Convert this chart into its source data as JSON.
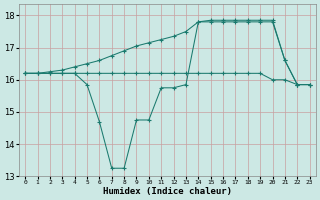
{
  "xlabel": "Humidex (Indice chaleur)",
  "bg_color": "#cce8e4",
  "line_color": "#1a7a6e",
  "grid_color": "#d9b8b8",
  "xlim": [
    -0.5,
    23.5
  ],
  "ylim": [
    13.0,
    18.35
  ],
  "yticks": [
    13,
    14,
    15,
    16,
    17,
    18
  ],
  "xticks": [
    0,
    1,
    2,
    3,
    4,
    5,
    6,
    7,
    8,
    9,
    10,
    11,
    12,
    13,
    14,
    15,
    16,
    17,
    18,
    19,
    20,
    21,
    22,
    23
  ],
  "line1_x": [
    0,
    1,
    2,
    3,
    4,
    5,
    6,
    7,
    8,
    9,
    10,
    11,
    12,
    13,
    14,
    15,
    16,
    17,
    18,
    19,
    20,
    21,
    22,
    23
  ],
  "line1_y": [
    16.2,
    16.2,
    16.25,
    16.3,
    16.4,
    16.5,
    16.6,
    16.75,
    16.9,
    17.05,
    17.15,
    17.25,
    17.35,
    17.5,
    17.8,
    17.85,
    17.85,
    17.85,
    17.85,
    17.85,
    17.85,
    16.6,
    15.85,
    15.85
  ],
  "line2_x": [
    0,
    1,
    2,
    3,
    4,
    5,
    6,
    7,
    8,
    9,
    10,
    11,
    12,
    13,
    14,
    15,
    16,
    17,
    18,
    19,
    20,
    21,
    22,
    23
  ],
  "line2_y": [
    16.2,
    16.2,
    16.2,
    16.2,
    16.2,
    16.2,
    16.2,
    16.2,
    16.2,
    16.2,
    16.2,
    16.2,
    16.2,
    16.2,
    16.2,
    16.2,
    16.2,
    16.2,
    16.2,
    16.2,
    16.0,
    16.0,
    15.85,
    15.85
  ],
  "line3_x": [
    0,
    1,
    2,
    3,
    4,
    5,
    6,
    7,
    8,
    9,
    10,
    11,
    12,
    13,
    14,
    15,
    16,
    17,
    18,
    19,
    20,
    21,
    22,
    23
  ],
  "line3_y": [
    16.2,
    16.2,
    16.2,
    16.2,
    16.2,
    15.85,
    14.7,
    13.25,
    13.25,
    14.75,
    14.75,
    15.75,
    15.75,
    15.85,
    17.8,
    17.8,
    17.8,
    17.8,
    17.8,
    17.8,
    17.8,
    16.6,
    15.85,
    15.85
  ]
}
